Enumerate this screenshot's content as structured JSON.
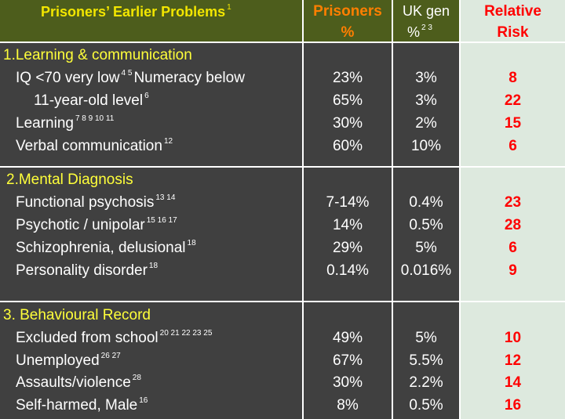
{
  "header": {
    "title": "Prisoners’ Earlier Problems",
    "title_refs": "1",
    "prisoners_line1": "Prisoners",
    "prisoners_line2": "%",
    "ukgen_line1": "UK gen",
    "ukgen_line2": "%",
    "ukgen_refs": "2  3",
    "rr_line1": "Relative",
    "rr_line2": "Risk"
  },
  "sections": [
    {
      "title": "1.Learning & communication",
      "rows": [
        {
          "label": "IQ <70    very low",
          "refs": "4  5",
          "label_tail": "Numeracy below",
          "prisoners": "23%",
          "uk": "3%",
          "rr": "8"
        },
        {
          "label": "11-year-old level",
          "refs": "6",
          "prisoners": "65%",
          "uk": "3%",
          "rr": "22"
        },
        {
          "label": "Learning",
          "refs": "7 8 9 10 11",
          "prisoners": "30%",
          "uk": "2%",
          "rr": "15"
        },
        {
          "label": "Verbal communication",
          "refs": "12",
          "prisoners": "60%",
          "uk": "10%",
          "rr": "6"
        }
      ]
    },
    {
      "title": "2.Mental Diagnosis",
      "rows": [
        {
          "label": "Functional psychosis",
          "refs": "13  14",
          "prisoners": "7-14%",
          "uk": "0.4%",
          "rr": "23"
        },
        {
          "label": "Psychotic  / unipolar",
          "refs": "15 16 17",
          "prisoners": "14%",
          "uk": "0.5%",
          "rr": "28"
        },
        {
          "label": "Schizophrenia, delusional",
          "refs": "18",
          "prisoners": "29%",
          "uk": "5%",
          "rr": "6"
        },
        {
          "label": "Personality disorder",
          "refs": "18",
          "prisoners": "0.14%",
          "uk": "0.016%",
          "rr": "9"
        }
      ]
    },
    {
      "title": "3.  Behavioural Record",
      "rows": [
        {
          "label": "Excluded from school",
          "refs": "20 21  22 23 25",
          "prisoners": "49%",
          "uk": "5%",
          "rr": "10"
        },
        {
          "label": "Unemployed",
          "refs": "26   27",
          "prisoners": "67%",
          "uk": "5.5%",
          "rr": "12"
        },
        {
          "label": "Assaults/violence",
          "refs": "28",
          "prisoners": "30%",
          "uk": "2.2%",
          "rr": "14"
        },
        {
          "label": "Self-harmed, Male",
          "refs": "16",
          "prisoners": "8%",
          "uk": "0.5%",
          "rr": "16"
        }
      ]
    }
  ],
  "colors": {
    "header_bg": "#4d5d1c",
    "body_bg": "#404040",
    "rr_bg": "#dde9de",
    "title_yellow": "#f2e600",
    "prisoners_orange": "#ff7f00",
    "section_yellow": "#ffff3a",
    "rr_red": "#ff0000"
  }
}
